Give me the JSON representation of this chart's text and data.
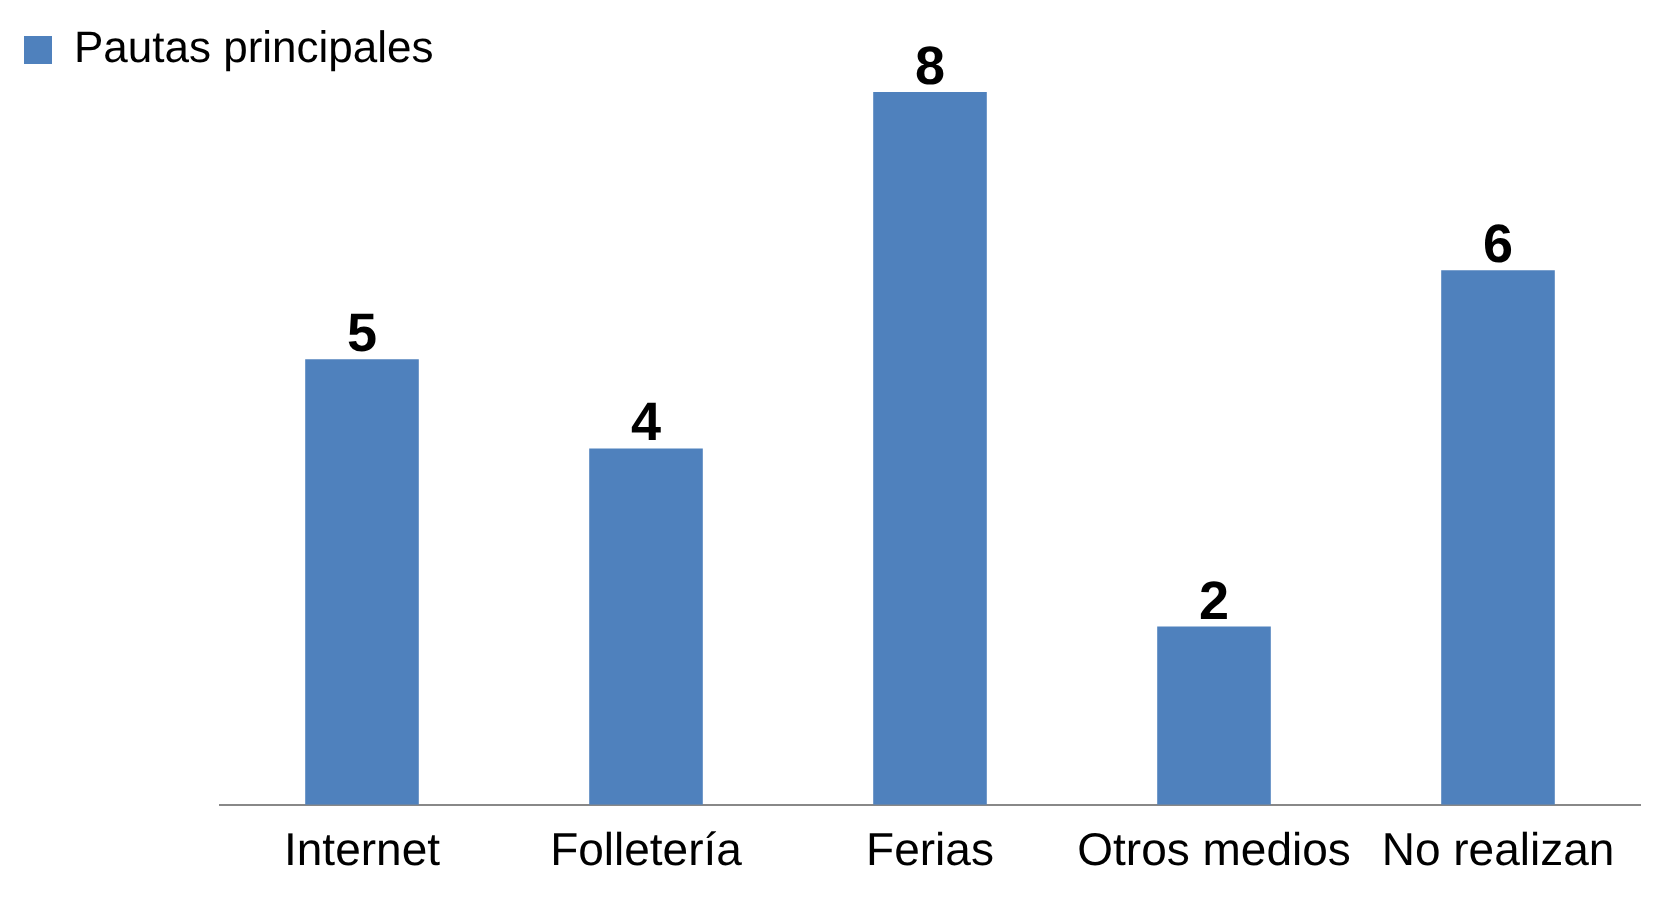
{
  "chart_data": {
    "type": "bar",
    "categories": [
      "Internet",
      "Folletería",
      "Ferias",
      "Otros medios",
      "No realizan"
    ],
    "series": [
      {
        "name": "Pautas principales",
        "color": "#4f81bd",
        "values": [
          5,
          4,
          8,
          2,
          6
        ]
      }
    ],
    "data_labels": true,
    "legend": "top left",
    "grid": false
  }
}
